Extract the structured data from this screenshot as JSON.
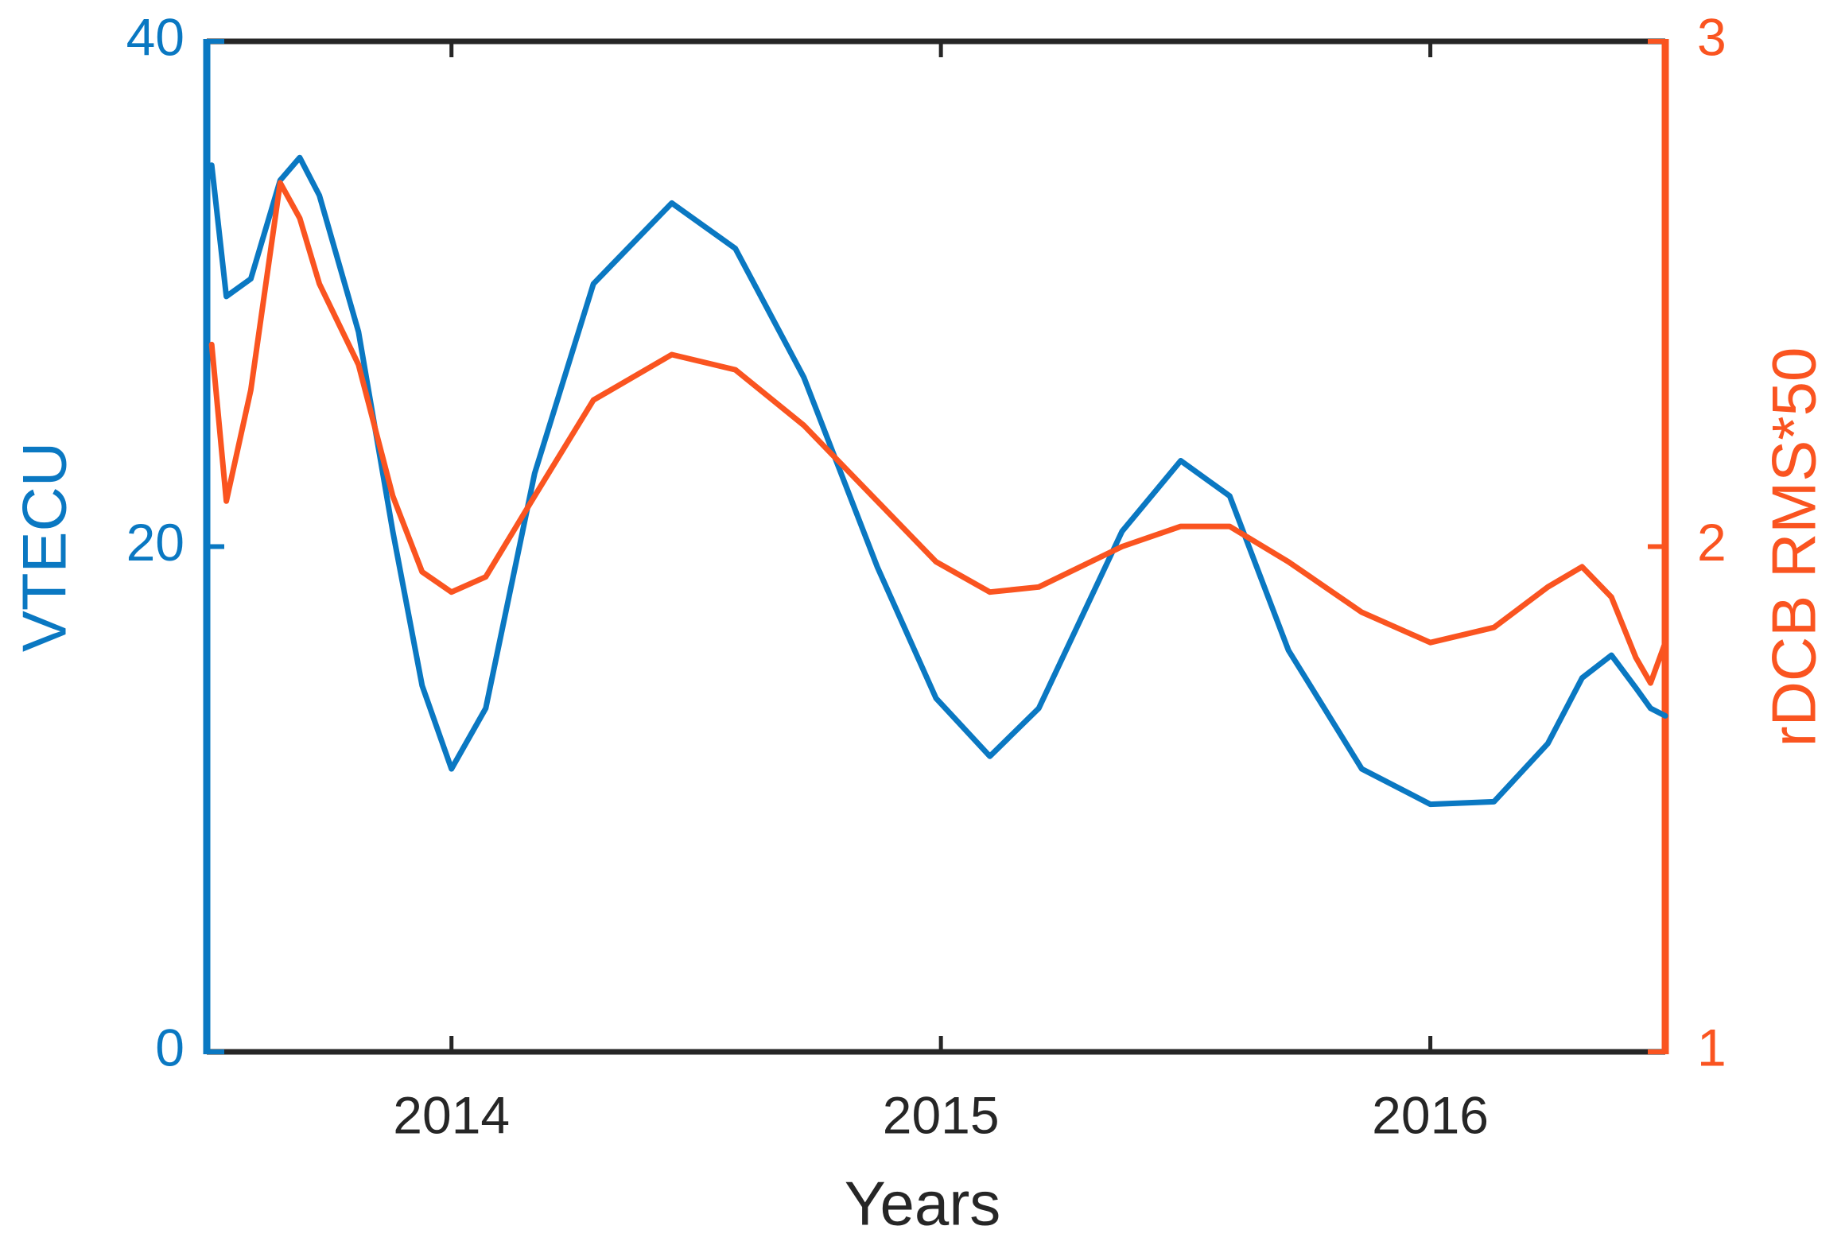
{
  "chart_data": {
    "type": "line",
    "xlabel": "Years",
    "ylabel": "VTECU",
    "y2label": "rDCB RMS*50",
    "x": [
      2013.51,
      2013.54,
      2013.59,
      2013.65,
      2013.69,
      2013.73,
      2013.81,
      2013.88,
      2013.94,
      2014.0,
      2014.07,
      2014.17,
      2014.29,
      2014.45,
      2014.58,
      2014.72,
      2014.87,
      2014.99,
      2015.1,
      2015.2,
      2015.37,
      2015.49,
      2015.59,
      2015.71,
      2015.86,
      2016.0,
      2016.13,
      2016.24,
      2016.31,
      2016.37,
      2016.42,
      2016.45,
      2016.48
    ],
    "series": [
      {
        "name": "VTECU",
        "color": "#0a78c2",
        "axis": "y",
        "values": [
          35.1,
          29.9,
          30.6,
          34.5,
          35.4,
          33.9,
          28.5,
          20.6,
          14.5,
          11.2,
          13.6,
          22.9,
          30.4,
          33.6,
          31.8,
          26.7,
          19.2,
          14.0,
          11.7,
          13.6,
          20.6,
          23.4,
          22.0,
          15.9,
          11.2,
          9.8,
          9.9,
          12.2,
          14.8,
          15.7,
          14.4,
          13.6,
          13.3
        ]
      },
      {
        "name": "rDCB RMS*50",
        "color": "#fa5420",
        "axis": "y2",
        "values": [
          2.4,
          2.09,
          2.31,
          2.72,
          2.65,
          2.52,
          2.36,
          2.1,
          1.95,
          1.91,
          1.94,
          2.1,
          2.29,
          2.38,
          2.35,
          2.24,
          2.09,
          1.97,
          1.91,
          1.92,
          2.0,
          2.04,
          2.04,
          1.97,
          1.87,
          1.81,
          1.84,
          1.92,
          1.96,
          1.9,
          1.78,
          1.73,
          1.81
        ]
      }
    ],
    "xlim": [
      2013.5,
      2016.48
    ],
    "xticks": [
      2014,
      2015,
      2016
    ],
    "ylim": [
      0,
      40
    ],
    "yticks": [
      0,
      20,
      40
    ],
    "y2lim": [
      1,
      3
    ],
    "y2ticks": [
      1,
      2,
      3
    ],
    "grid": false
  }
}
